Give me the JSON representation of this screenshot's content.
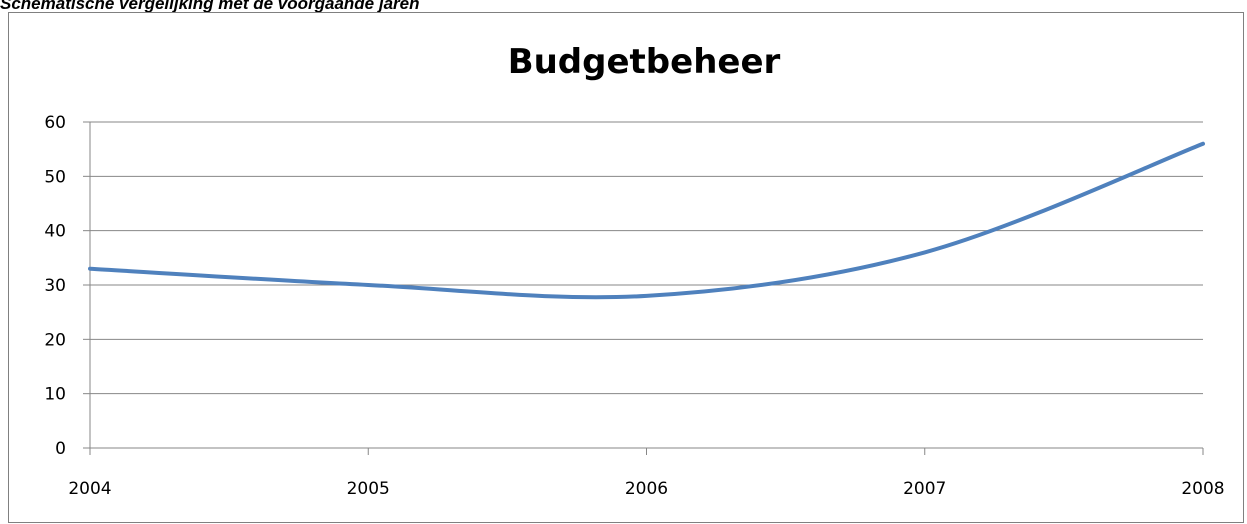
{
  "caption": "Schematische vergelijking met de voorgaande jaren",
  "chart_data": {
    "type": "line",
    "title": "Budgetbeheer",
    "xlabel": "",
    "ylabel": "",
    "categories": [
      "2004",
      "2005",
      "2006",
      "2007",
      "2008"
    ],
    "series": [
      {
        "values": [
          33,
          30,
          28,
          36,
          56
        ],
        "color": "#4F81BD"
      }
    ],
    "ylim": [
      0,
      60
    ],
    "yticks": [
      0,
      10,
      20,
      30,
      40,
      50,
      60
    ],
    "grid": true,
    "legend": "none",
    "smooth": true
  }
}
